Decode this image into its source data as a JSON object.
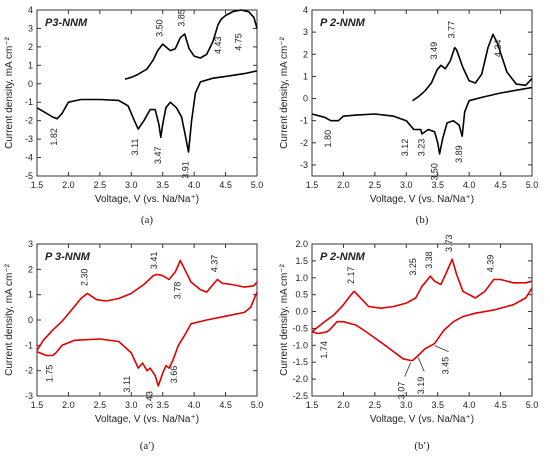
{
  "figure": {
    "panels": [
      {
        "id": "a",
        "title": "P3-NNM",
        "caption": "(a)",
        "color": "#000000"
      },
      {
        "id": "b",
        "title": "P 2-NNM",
        "caption": "(b)",
        "color": "#000000"
      },
      {
        "id": "a2",
        "title": "P 3-NNM",
        "caption": "(a′)",
        "color": "#e00000"
      },
      {
        "id": "b2",
        "title": "P 2-NNM",
        "caption": "(b′)",
        "color": "#e00000"
      }
    ]
  },
  "chart_data": [
    {
      "type": "line",
      "title": "P3-NNM",
      "xlabel": "Voltage, V (vs. Na/Na⁺)",
      "ylabel": "Current density, mA cm⁻²",
      "xlim": [
        1.5,
        5.0
      ],
      "ylim": [
        -5,
        4
      ],
      "xticks": [
        "1.5",
        "2.0",
        "2.5",
        "3.0",
        "3.5",
        "4.0",
        "4.5",
        "5.0"
      ],
      "yticks": [
        "-5",
        "-4",
        "-3",
        "-2",
        "-1",
        "0",
        "1",
        "2",
        "3",
        "4"
      ],
      "series": [
        {
          "values": [
            [
              5.0,
              3.0
            ],
            [
              4.95,
              3.6
            ],
            [
              4.87,
              3.9
            ],
            [
              4.75,
              4.0
            ],
            [
              4.62,
              3.92
            ],
            [
              4.5,
              3.7
            ],
            [
              4.43,
              3.5
            ],
            [
              4.38,
              3.2
            ],
            [
              4.3,
              2.3
            ],
            [
              4.2,
              1.6
            ],
            [
              4.1,
              1.4
            ],
            [
              4.0,
              1.5
            ],
            [
              3.92,
              1.9
            ],
            [
              3.85,
              2.7
            ],
            [
              3.78,
              2.5
            ],
            [
              3.7,
              1.9
            ],
            [
              3.62,
              1.8
            ],
            [
              3.5,
              2.15
            ],
            [
              3.42,
              1.8
            ],
            [
              3.35,
              1.3
            ],
            [
              3.25,
              0.8
            ],
            [
              3.1,
              0.5
            ],
            [
              3.0,
              0.35
            ],
            [
              2.9,
              0.25
            ]
          ]
        },
        {
          "values": [
            [
              5.0,
              0.7
            ],
            [
              4.8,
              0.55
            ],
            [
              4.5,
              0.4
            ],
            [
              4.3,
              0.3
            ],
            [
              4.1,
              0.1
            ],
            [
              4.02,
              -0.5
            ],
            [
              3.96,
              -2.0
            ],
            [
              3.91,
              -3.7
            ],
            [
              3.86,
              -2.8
            ],
            [
              3.8,
              -1.8
            ],
            [
              3.72,
              -1.3
            ],
            [
              3.62,
              -1.0
            ],
            [
              3.55,
              -1.3
            ],
            [
              3.5,
              -2.2
            ],
            [
              3.47,
              -2.9
            ],
            [
              3.44,
              -2.2
            ],
            [
              3.38,
              -1.4
            ],
            [
              3.3,
              -1.4
            ],
            [
              3.2,
              -2.0
            ],
            [
              3.11,
              -2.45
            ],
            [
              3.05,
              -2.0
            ],
            [
              2.95,
              -1.2
            ],
            [
              2.8,
              -0.9
            ],
            [
              2.5,
              -0.85
            ],
            [
              2.2,
              -0.85
            ],
            [
              2.0,
              -1.0
            ],
            [
              1.9,
              -1.6
            ],
            [
              1.82,
              -1.9
            ],
            [
              1.75,
              -1.8
            ],
            [
              1.6,
              -1.5
            ],
            [
              1.5,
              -1.3
            ]
          ]
        }
      ],
      "annotations": [
        "3.50",
        "3.85",
        "4.43",
        "4.75",
        "1.82",
        "3.11",
        "3.47",
        "3.91"
      ]
    },
    {
      "type": "line",
      "title": "P 2-NNM",
      "xlabel": "Voltage, V (vs. Na/Na⁺)",
      "ylabel": "Current density, mA cm⁻²",
      "xlim": [
        1.5,
        5.0
      ],
      "ylim": [
        -3.5,
        4
      ],
      "xticks": [
        "1.5",
        "2.0",
        "2.5",
        "3.0",
        "3.5",
        "4.0",
        "4.5",
        "5.0"
      ],
      "yticks": [
        "-3",
        "-2",
        "-1",
        "0",
        "1",
        "2",
        "3",
        "4"
      ],
      "series": [
        {
          "values": [
            [
              5.0,
              0.9
            ],
            [
              4.9,
              0.6
            ],
            [
              4.75,
              0.65
            ],
            [
              4.6,
              1.2
            ],
            [
              4.45,
              2.5
            ],
            [
              4.38,
              2.9
            ],
            [
              4.3,
              2.3
            ],
            [
              4.2,
              1.1
            ],
            [
              4.1,
              0.7
            ],
            [
              4.0,
              0.8
            ],
            [
              3.9,
              1.4
            ],
            [
              3.8,
              2.2
            ],
            [
              3.77,
              2.3
            ],
            [
              3.7,
              1.7
            ],
            [
              3.62,
              1.35
            ],
            [
              3.55,
              1.5
            ],
            [
              3.49,
              1.3
            ],
            [
              3.4,
              0.7
            ],
            [
              3.3,
              0.35
            ],
            [
              3.2,
              0.1
            ],
            [
              3.1,
              -0.1
            ]
          ]
        },
        {
          "values": [
            [
              5.0,
              0.5
            ],
            [
              4.8,
              0.4
            ],
            [
              4.5,
              0.25
            ],
            [
              4.2,
              0.05
            ],
            [
              4.0,
              -0.1
            ],
            [
              3.93,
              -0.6
            ],
            [
              3.89,
              -1.7
            ],
            [
              3.84,
              -1.2
            ],
            [
              3.75,
              -1.0
            ],
            [
              3.65,
              -1.1
            ],
            [
              3.58,
              -1.8
            ],
            [
              3.53,
              -2.5
            ],
            [
              3.5,
              -2.0
            ],
            [
              3.45,
              -1.5
            ],
            [
              3.35,
              -1.4
            ],
            [
              3.25,
              -1.6
            ],
            [
              3.23,
              -1.4
            ],
            [
              3.12,
              -1.4
            ],
            [
              3.0,
              -1.0
            ],
            [
              2.8,
              -0.8
            ],
            [
              2.5,
              -0.7
            ],
            [
              2.2,
              -0.75
            ],
            [
              2.0,
              -0.8
            ],
            [
              1.92,
              -1.0
            ],
            [
              1.8,
              -1.0
            ],
            [
              1.7,
              -0.85
            ],
            [
              1.5,
              -0.7
            ]
          ]
        }
      ],
      "annotations": [
        "3.49",
        "3.77",
        "4.34",
        "1.80",
        "3.12",
        "3.23",
        "3.50",
        "3.89"
      ]
    },
    {
      "type": "line",
      "title": "P 3-NNM",
      "xlabel": "Voltage, V (vs. Na/Na⁺)",
      "ylabel": "Current density, mA cm⁻²",
      "xlim": [
        1.5,
        5.0
      ],
      "ylim": [
        -3,
        3
      ],
      "xticks": [
        "1.5",
        "2.0",
        "2.5",
        "3.0",
        "3.5",
        "4.0",
        "4.5",
        "5.0"
      ],
      "yticks": [
        "-3",
        "-2",
        "-1",
        "0",
        "1",
        "2",
        "3"
      ],
      "series": [
        {
          "values": [
            [
              1.5,
              -1.2
            ],
            [
              1.6,
              -0.8
            ],
            [
              1.75,
              -0.4
            ],
            [
              1.9,
              -0.05
            ],
            [
              2.05,
              0.4
            ],
            [
              2.2,
              0.85
            ],
            [
              2.3,
              1.05
            ],
            [
              2.45,
              0.8
            ],
            [
              2.6,
              0.75
            ],
            [
              2.8,
              0.85
            ],
            [
              3.0,
              1.05
            ],
            [
              3.2,
              1.4
            ],
            [
              3.35,
              1.75
            ],
            [
              3.41,
              1.8
            ],
            [
              3.5,
              1.75
            ],
            [
              3.6,
              1.6
            ],
            [
              3.7,
              1.9
            ],
            [
              3.78,
              2.35
            ],
            [
              3.85,
              2.0
            ],
            [
              3.95,
              1.5
            ],
            [
              4.1,
              1.2
            ],
            [
              4.2,
              1.1
            ],
            [
              4.3,
              1.4
            ],
            [
              4.37,
              1.6
            ],
            [
              4.45,
              1.45
            ],
            [
              4.6,
              1.4
            ],
            [
              4.8,
              1.3
            ],
            [
              4.95,
              1.35
            ],
            [
              5.0,
              1.5
            ]
          ]
        },
        {
          "values": [
            [
              5.0,
              1.1
            ],
            [
              4.9,
              0.5
            ],
            [
              4.8,
              0.3
            ],
            [
              4.5,
              0.15
            ],
            [
              4.2,
              0.0
            ],
            [
              3.95,
              -0.15
            ],
            [
              3.85,
              -0.6
            ],
            [
              3.75,
              -1.0
            ],
            [
              3.66,
              -1.6
            ],
            [
              3.6,
              -1.9
            ],
            [
              3.55,
              -1.8
            ],
            [
              3.5,
              -2.1
            ],
            [
              3.43,
              -2.6
            ],
            [
              3.38,
              -2.2
            ],
            [
              3.3,
              -1.9
            ],
            [
              3.25,
              -2.0
            ],
            [
              3.18,
              -1.7
            ],
            [
              3.11,
              -1.9
            ],
            [
              3.0,
              -1.3
            ],
            [
              2.8,
              -0.85
            ],
            [
              2.5,
              -0.75
            ],
            [
              2.1,
              -0.8
            ],
            [
              1.9,
              -1.0
            ],
            [
              1.8,
              -1.3
            ],
            [
              1.75,
              -1.4
            ],
            [
              1.65,
              -1.4
            ],
            [
              1.5,
              -1.25
            ]
          ]
        }
      ],
      "annotations": [
        "2.30",
        "3.41",
        "3.78",
        "4.37",
        "1.75",
        "3.11",
        "3.43",
        "3.66"
      ]
    },
    {
      "type": "line",
      "title": "P 2-NNM",
      "xlabel": "Voltage, V (vs. Na/Na⁺)",
      "ylabel": "Current density, mA cm⁻²",
      "xlim": [
        1.5,
        5.0
      ],
      "ylim": [
        -2.5,
        2
      ],
      "xticks": [
        "1.5",
        "2.0",
        "2.5",
        "3.0",
        "3.5",
        "4.0",
        "4.5",
        "5.0"
      ],
      "yticks": [
        "-2.5",
        "-2.0",
        "-1.5",
        "-1.0",
        "-0.5",
        "0.0",
        "0.5",
        "1.0",
        "1.5",
        "2.0"
      ],
      "series": [
        {
          "values": [
            [
              1.5,
              -0.6
            ],
            [
              1.6,
              -0.45
            ],
            [
              1.7,
              -0.3
            ],
            [
              1.85,
              -0.1
            ],
            [
              2.0,
              0.2
            ],
            [
              2.1,
              0.45
            ],
            [
              2.17,
              0.6
            ],
            [
              2.25,
              0.45
            ],
            [
              2.4,
              0.15
            ],
            [
              2.6,
              0.1
            ],
            [
              2.8,
              0.15
            ],
            [
              3.0,
              0.25
            ],
            [
              3.15,
              0.4
            ],
            [
              3.25,
              0.75
            ],
            [
              3.3,
              0.85
            ],
            [
              3.38,
              1.05
            ],
            [
              3.45,
              0.9
            ],
            [
              3.55,
              0.8
            ],
            [
              3.65,
              1.2
            ],
            [
              3.73,
              1.55
            ],
            [
              3.8,
              1.1
            ],
            [
              3.9,
              0.6
            ],
            [
              4.1,
              0.4
            ],
            [
              4.25,
              0.6
            ],
            [
              4.39,
              0.95
            ],
            [
              4.5,
              0.95
            ],
            [
              4.7,
              0.85
            ],
            [
              4.9,
              0.85
            ],
            [
              5.0,
              0.9
            ]
          ]
        },
        {
          "values": [
            [
              5.0,
              0.7
            ],
            [
              4.9,
              0.4
            ],
            [
              4.7,
              0.2
            ],
            [
              4.4,
              0.05
            ],
            [
              4.1,
              -0.05
            ],
            [
              3.9,
              -0.15
            ],
            [
              3.75,
              -0.3
            ],
            [
              3.6,
              -0.55
            ],
            [
              3.45,
              -0.95
            ],
            [
              3.4,
              -1.0
            ],
            [
              3.3,
              -1.1
            ],
            [
              3.19,
              -1.3
            ],
            [
              3.1,
              -1.45
            ],
            [
              3.07,
              -1.45
            ],
            [
              2.95,
              -1.4
            ],
            [
              2.7,
              -1.05
            ],
            [
              2.4,
              -0.65
            ],
            [
              2.2,
              -0.4
            ],
            [
              2.0,
              -0.3
            ],
            [
              1.9,
              -0.3
            ],
            [
              1.8,
              -0.5
            ],
            [
              1.74,
              -0.6
            ],
            [
              1.6,
              -0.65
            ],
            [
              1.5,
              -0.6
            ]
          ]
        }
      ],
      "annotations": [
        "2.17",
        "3.25",
        "3.38",
        "3.73",
        "4.39",
        "1.74",
        "3.07",
        "3.19",
        "3.45"
      ]
    }
  ]
}
